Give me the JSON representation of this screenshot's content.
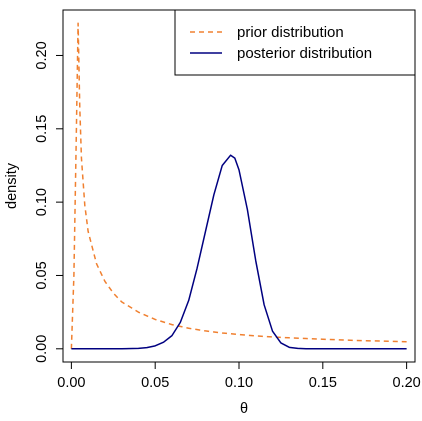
{
  "chart_data": {
    "type": "line",
    "title": "",
    "xlabel": "θ",
    "ylabel": "density",
    "xlim": [
      -0.005,
      0.205
    ],
    "ylim": [
      -0.009,
      0.231
    ],
    "x_ticks": [
      0.0,
      0.05,
      0.1,
      0.15,
      0.2
    ],
    "x_tick_labels": [
      "0.00",
      "0.05",
      "0.10",
      "0.15",
      "0.20"
    ],
    "y_ticks": [
      0.0,
      0.05,
      0.1,
      0.15,
      0.2
    ],
    "y_tick_labels": [
      "0.00",
      "0.05",
      "0.10",
      "0.15",
      "0.20"
    ],
    "grid": false,
    "legend_position": "top-right",
    "series": [
      {
        "name": "prior distribution",
        "color": "#f08030",
        "dash": "dashed",
        "x": [
          0.0,
          0.0015,
          0.003,
          0.004,
          0.005,
          0.006,
          0.008,
          0.01,
          0.015,
          0.02,
          0.025,
          0.03,
          0.04,
          0.05,
          0.06,
          0.07,
          0.08,
          0.09,
          0.1,
          0.11,
          0.12,
          0.13,
          0.14,
          0.15,
          0.16,
          0.17,
          0.18,
          0.19,
          0.2
        ],
        "y": [
          0.0,
          0.05,
          0.15,
          0.222,
          0.165,
          0.13,
          0.098,
          0.08,
          0.058,
          0.046,
          0.038,
          0.032,
          0.025,
          0.02,
          0.0165,
          0.014,
          0.0122,
          0.0108,
          0.0097,
          0.0088,
          0.0081,
          0.0075,
          0.007,
          0.0065,
          0.0061,
          0.0057,
          0.0054,
          0.0051,
          0.0048
        ]
      },
      {
        "name": "posterior distribution",
        "color": "#000080",
        "dash": "solid",
        "x": [
          0.0,
          0.03,
          0.04,
          0.045,
          0.05,
          0.055,
          0.06,
          0.065,
          0.07,
          0.075,
          0.08,
          0.085,
          0.09,
          0.095,
          0.0975,
          0.1,
          0.105,
          0.11,
          0.115,
          0.12,
          0.125,
          0.13,
          0.135,
          0.14,
          0.2
        ],
        "y": [
          0.0,
          0.0,
          0.0003,
          0.0008,
          0.002,
          0.0045,
          0.009,
          0.018,
          0.033,
          0.055,
          0.08,
          0.105,
          0.125,
          0.132,
          0.13,
          0.122,
          0.095,
          0.06,
          0.03,
          0.012,
          0.004,
          0.001,
          0.0003,
          0.0,
          0.0
        ]
      }
    ]
  }
}
